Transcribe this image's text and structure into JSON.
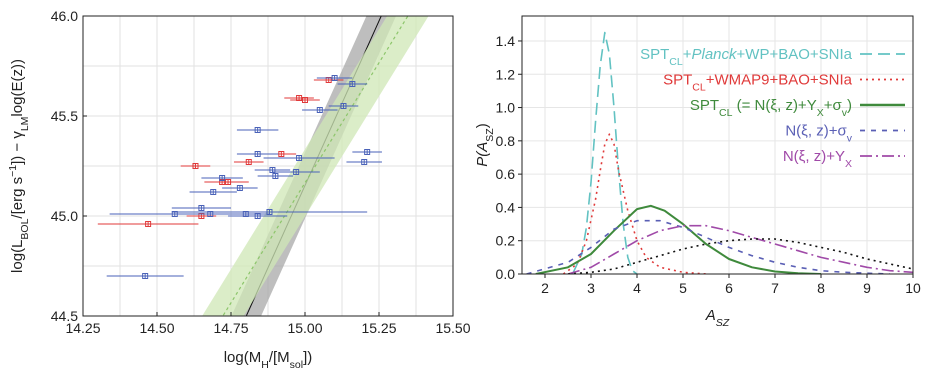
{
  "chart_data": [
    {
      "type": "scatter",
      "xlabel": "log(M<sub>H</sub>/[M<sub>sol</sub>])",
      "xlabel_parts": [
        "log(M",
        "H",
        "/[M",
        "sol",
        "])"
      ],
      "ylabel_parts": [
        "log(L",
        "BOL",
        "/[erg s",
        "−1",
        "]) − γ",
        "LM",
        "log(E(z))"
      ],
      "xlim": [
        14.25,
        15.5
      ],
      "ylim": [
        44.5,
        46.0
      ],
      "xticks": [
        "14.25",
        "14.50",
        "14.75",
        "15.00",
        "15.25",
        "15.50"
      ],
      "yticks": [
        "44.5",
        "45.0",
        "45.5",
        "46.0"
      ],
      "grid": true,
      "series": [
        {
          "color": "#e03a3a",
          "points": [
            {
              "x": 14.47,
              "y": 44.96,
              "xerr": 0.17,
              "yerr": 0.015
            },
            {
              "x": 14.63,
              "y": 45.25,
              "xerr": 0.05,
              "yerr": 0.015
            },
            {
              "x": 14.65,
              "y": 45.0,
              "xerr": 0.05,
              "yerr": 0.015
            },
            {
              "x": 14.72,
              "y": 45.17,
              "xerr": 0.06,
              "yerr": 0.015
            },
            {
              "x": 14.74,
              "y": 45.17,
              "xerr": 0.07,
              "yerr": 0.015
            },
            {
              "x": 14.81,
              "y": 45.27,
              "xerr": 0.05,
              "yerr": 0.015
            },
            {
              "x": 14.92,
              "y": 45.31,
              "xerr": 0.05,
              "yerr": 0.015
            },
            {
              "x": 14.98,
              "y": 45.59,
              "xerr": 0.05,
              "yerr": 0.015
            },
            {
              "x": 15.0,
              "y": 45.58,
              "xerr": 0.05,
              "yerr": 0.015
            },
            {
              "x": 15.08,
              "y": 45.68,
              "xerr": 0.05,
              "yerr": 0.015
            }
          ]
        },
        {
          "color": "#4a62b8",
          "points": [
            {
              "x": 14.46,
              "y": 44.7,
              "xerr": 0.13,
              "yerr": 0.015
            },
            {
              "x": 14.56,
              "y": 45.01,
              "xerr": 0.22,
              "yerr": 0.015
            },
            {
              "x": 14.65,
              "y": 45.04,
              "xerr": 0.1,
              "yerr": 0.015
            },
            {
              "x": 14.68,
              "y": 45.01,
              "xerr": 0.12,
              "yerr": 0.015
            },
            {
              "x": 14.69,
              "y": 45.12,
              "xerr": 0.08,
              "yerr": 0.015
            },
            {
              "x": 14.72,
              "y": 45.19,
              "xerr": 0.07,
              "yerr": 0.015
            },
            {
              "x": 14.78,
              "y": 45.14,
              "xerr": 0.06,
              "yerr": 0.015
            },
            {
              "x": 14.8,
              "y": 45.01,
              "xerr": 0.08,
              "yerr": 0.015
            },
            {
              "x": 14.84,
              "y": 45.0,
              "xerr": 0.1,
              "yerr": 0.015
            },
            {
              "x": 14.84,
              "y": 45.31,
              "xerr": 0.07,
              "yerr": 0.015
            },
            {
              "x": 14.84,
              "y": 45.43,
              "xerr": 0.07,
              "yerr": 0.015
            },
            {
              "x": 14.88,
              "y": 45.02,
              "xerr": 0.33,
              "yerr": 0.015
            },
            {
              "x": 14.89,
              "y": 45.23,
              "xerr": 0.06,
              "yerr": 0.015
            },
            {
              "x": 14.9,
              "y": 45.2,
              "xerr": 0.06,
              "yerr": 0.015
            },
            {
              "x": 14.97,
              "y": 45.22,
              "xerr": 0.08,
              "yerr": 0.015
            },
            {
              "x": 14.98,
              "y": 45.29,
              "xerr": 0.12,
              "yerr": 0.015
            },
            {
              "x": 15.05,
              "y": 45.53,
              "xerr": 0.06,
              "yerr": 0.015
            },
            {
              "x": 15.1,
              "y": 45.69,
              "xerr": 0.06,
              "yerr": 0.015
            },
            {
              "x": 15.13,
              "y": 45.55,
              "xerr": 0.05,
              "yerr": 0.015
            },
            {
              "x": 15.16,
              "y": 45.66,
              "xerr": 0.05,
              "yerr": 0.015
            },
            {
              "x": 15.2,
              "y": 45.27,
              "xerr": 0.06,
              "yerr": 0.015
            },
            {
              "x": 15.21,
              "y": 45.32,
              "xerr": 0.05,
              "yerr": 0.015
            }
          ]
        }
      ],
      "fit_lines": [
        {
          "style": "solid",
          "color": "#111111",
          "slope": 3.29,
          "intercept": 45.35,
          "pivot": 15.06,
          "band_halfwidth": 0.05,
          "band_color": "#a8a8a8"
        },
        {
          "style": "dashed",
          "color": "#8cc56a",
          "slope": 2.4,
          "intercept": 45.31,
          "pivot": 15.06,
          "band_halfwidth": 0.07,
          "band_color": "#cfe7b6"
        }
      ]
    },
    {
      "type": "line",
      "xlabel_parts": [
        "A",
        "SZ"
      ],
      "ylabel_parts": [
        "P(A",
        "SZ",
        ")"
      ],
      "xlim": [
        1.5,
        10
      ],
      "ylim": [
        0,
        1.55
      ],
      "xticks": [
        "2",
        "3",
        "4",
        "5",
        "6",
        "7",
        "8",
        "9",
        "10"
      ],
      "yticks": [
        "0.0",
        "0.2",
        "0.4",
        "0.6",
        "0.8",
        "1.0",
        "1.2",
        "1.4"
      ],
      "grid": true,
      "legend_position": "top-right",
      "series": [
        {
          "name_parts": [
            "SPT",
            "CL",
            "+",
            "Planck",
            "+WP+BAO+SNIa"
          ],
          "color": "#62c2c2",
          "dash": "12,6",
          "x": [
            2.6,
            2.8,
            2.9,
            3.0,
            3.1,
            3.2,
            3.3,
            3.4,
            3.5,
            3.6,
            3.7,
            3.8,
            3.9,
            4.0
          ],
          "y": [
            0.0,
            0.12,
            0.28,
            0.55,
            0.92,
            1.25,
            1.45,
            1.32,
            1.0,
            0.62,
            0.3,
            0.1,
            0.02,
            0.0
          ]
        },
        {
          "name_parts": [
            "SPT",
            "CL",
            "+WMAP9+BAO+SNIa"
          ],
          "color": "#e03a3a",
          "dash": "2,4",
          "x": [
            2.4,
            2.7,
            2.9,
            3.1,
            3.2,
            3.3,
            3.4,
            3.5,
            3.6,
            3.8,
            4.0,
            4.2,
            4.5,
            5.0,
            5.5
          ],
          "y": [
            0.0,
            0.06,
            0.2,
            0.45,
            0.62,
            0.78,
            0.84,
            0.78,
            0.62,
            0.38,
            0.2,
            0.1,
            0.04,
            0.01,
            0.0
          ]
        },
        {
          "name_parts": [
            "SPT",
            "CL",
            " (= N(ξ, z)+Y",
            "X",
            "+σ",
            "v",
            ")"
          ],
          "color": "#3f8a3c",
          "dash": "none",
          "x": [
            1.8,
            2.5,
            3.0,
            3.5,
            4.0,
            4.3,
            4.6,
            5.0,
            5.5,
            6.0,
            6.5,
            7.0,
            7.5,
            8.0
          ],
          "y": [
            0.0,
            0.04,
            0.12,
            0.26,
            0.39,
            0.41,
            0.38,
            0.3,
            0.18,
            0.09,
            0.04,
            0.015,
            0.005,
            0.0
          ]
        },
        {
          "name_parts": [
            "N(ξ, z)+σ",
            "v"
          ],
          "color": "#5a5fb5",
          "dash": "5,6",
          "x": [
            1.6,
            2.5,
            3.0,
            3.5,
            4.0,
            4.5,
            5.0,
            5.5,
            6.0,
            6.5,
            7.0,
            7.5,
            8.0,
            8.5,
            9.0,
            9.5
          ],
          "y": [
            0.0,
            0.07,
            0.16,
            0.27,
            0.32,
            0.32,
            0.28,
            0.22,
            0.16,
            0.11,
            0.07,
            0.04,
            0.02,
            0.01,
            0.005,
            0.0
          ]
        },
        {
          "name_parts": [
            "N(ξ, z)+Y",
            "X"
          ],
          "color": "#a04aa8",
          "dash": "12,4,2,4",
          "x": [
            2.5,
            3.0,
            3.5,
            4.0,
            4.5,
            5.0,
            5.5,
            6.0,
            6.5,
            7.0,
            7.5,
            8.0,
            8.5,
            9.0,
            9.5,
            10.0
          ],
          "y": [
            0.0,
            0.04,
            0.12,
            0.2,
            0.26,
            0.29,
            0.29,
            0.26,
            0.22,
            0.18,
            0.14,
            0.1,
            0.07,
            0.04,
            0.02,
            0.01
          ]
        },
        {
          "color": "#111111",
          "dash": "2,4",
          "x": [
            2.5,
            3.0,
            3.5,
            4.0,
            4.5,
            5.0,
            5.5,
            6.0,
            6.5,
            7.0,
            7.5,
            8.0,
            8.5,
            9.0,
            9.5,
            10.0
          ],
          "y": [
            0.0,
            0.01,
            0.03,
            0.07,
            0.11,
            0.15,
            0.18,
            0.2,
            0.21,
            0.21,
            0.19,
            0.16,
            0.13,
            0.09,
            0.06,
            0.03
          ]
        }
      ]
    }
  ]
}
